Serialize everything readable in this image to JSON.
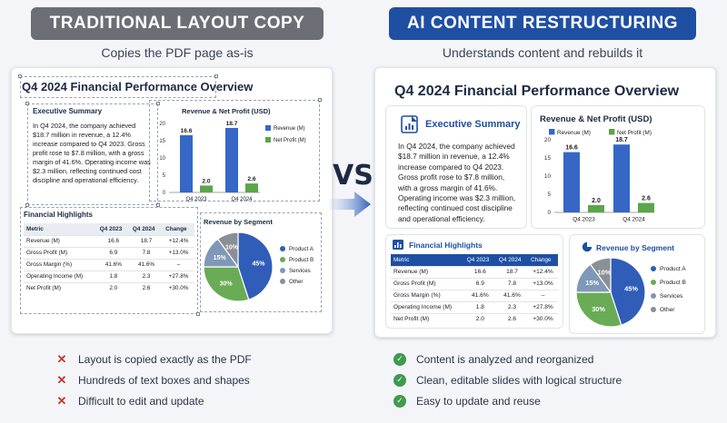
{
  "left": {
    "banner": "TRADITIONAL LAYOUT COPY",
    "subtitle": "Copies the PDF page as-is",
    "bullets": [
      "Layout is copied exactly as the PDF",
      "Hundreds of text boxes and shapes",
      "Difficult to edit and update"
    ]
  },
  "right": {
    "banner": "AI CONTENT RESTRUCTURING",
    "subtitle": "Understands content and rebuilds it",
    "bullets": [
      "Content is analyzed and reorganized",
      "Clean, editable slides with logical structure",
      "Easy to update and reuse"
    ]
  },
  "vs": "VS.",
  "slide": {
    "title": "Q4 2024 Financial Performance Overview",
    "exec_title": "Executive Summary",
    "exec_text": "In Q4 2024, the company achieved $18.7 million in revenue, a 12.4% increase compared to Q4 2023. Gross profit rose to $7.8 million, with a gross margin of 41.6%. Operating income was $2.3 million, reflecting continued cost discipline and operational efficiency.",
    "highlights_title": "Financial Highlights",
    "table_headers": [
      "Metric",
      "Q4 2023",
      "Q4 2024",
      "Change"
    ],
    "table_rows": [
      [
        "Revenue (M)",
        "16.6",
        "18.7",
        "+12.4%"
      ],
      [
        "Gross Profit (M)",
        "6.9",
        "7.8",
        "+13.0%"
      ],
      [
        "Gross Margin (%)",
        "41.6%",
        "41.6%",
        "–"
      ],
      [
        "Operating Income (M)",
        "1.8",
        "2.3",
        "+27.8%"
      ],
      [
        "Net Profit (M)",
        "2.0",
        "2.6",
        "+30.0%"
      ]
    ]
  },
  "chart_data": [
    {
      "type": "bar",
      "title": "Revenue & Net Profit (USD)",
      "categories": [
        "Q4 2023",
        "Q4 2024"
      ],
      "series": [
        {
          "name": "Revenue (M)",
          "values": [
            16.6,
            18.7
          ]
        },
        {
          "name": "Net Profit (M)",
          "values": [
            2.0,
            2.6
          ]
        }
      ],
      "yticks": [
        0,
        5,
        10,
        15,
        20
      ],
      "ylim": [
        0,
        20
      ],
      "legend": "right",
      "colors": [
        "#3667c7",
        "#5aa64a"
      ]
    },
    {
      "type": "pie",
      "title": "Revenue by Segment",
      "labels": [
        "Product A",
        "Product B",
        "Services",
        "Other"
      ],
      "values": [
        45,
        30,
        15,
        10
      ],
      "slice_labels": [
        "45%",
        "30%",
        "15%",
        "10%"
      ],
      "legend": "right",
      "colors": [
        "#2f5db8",
        "#6aab55",
        "#7f98b7",
        "#8a8f96"
      ]
    }
  ]
}
